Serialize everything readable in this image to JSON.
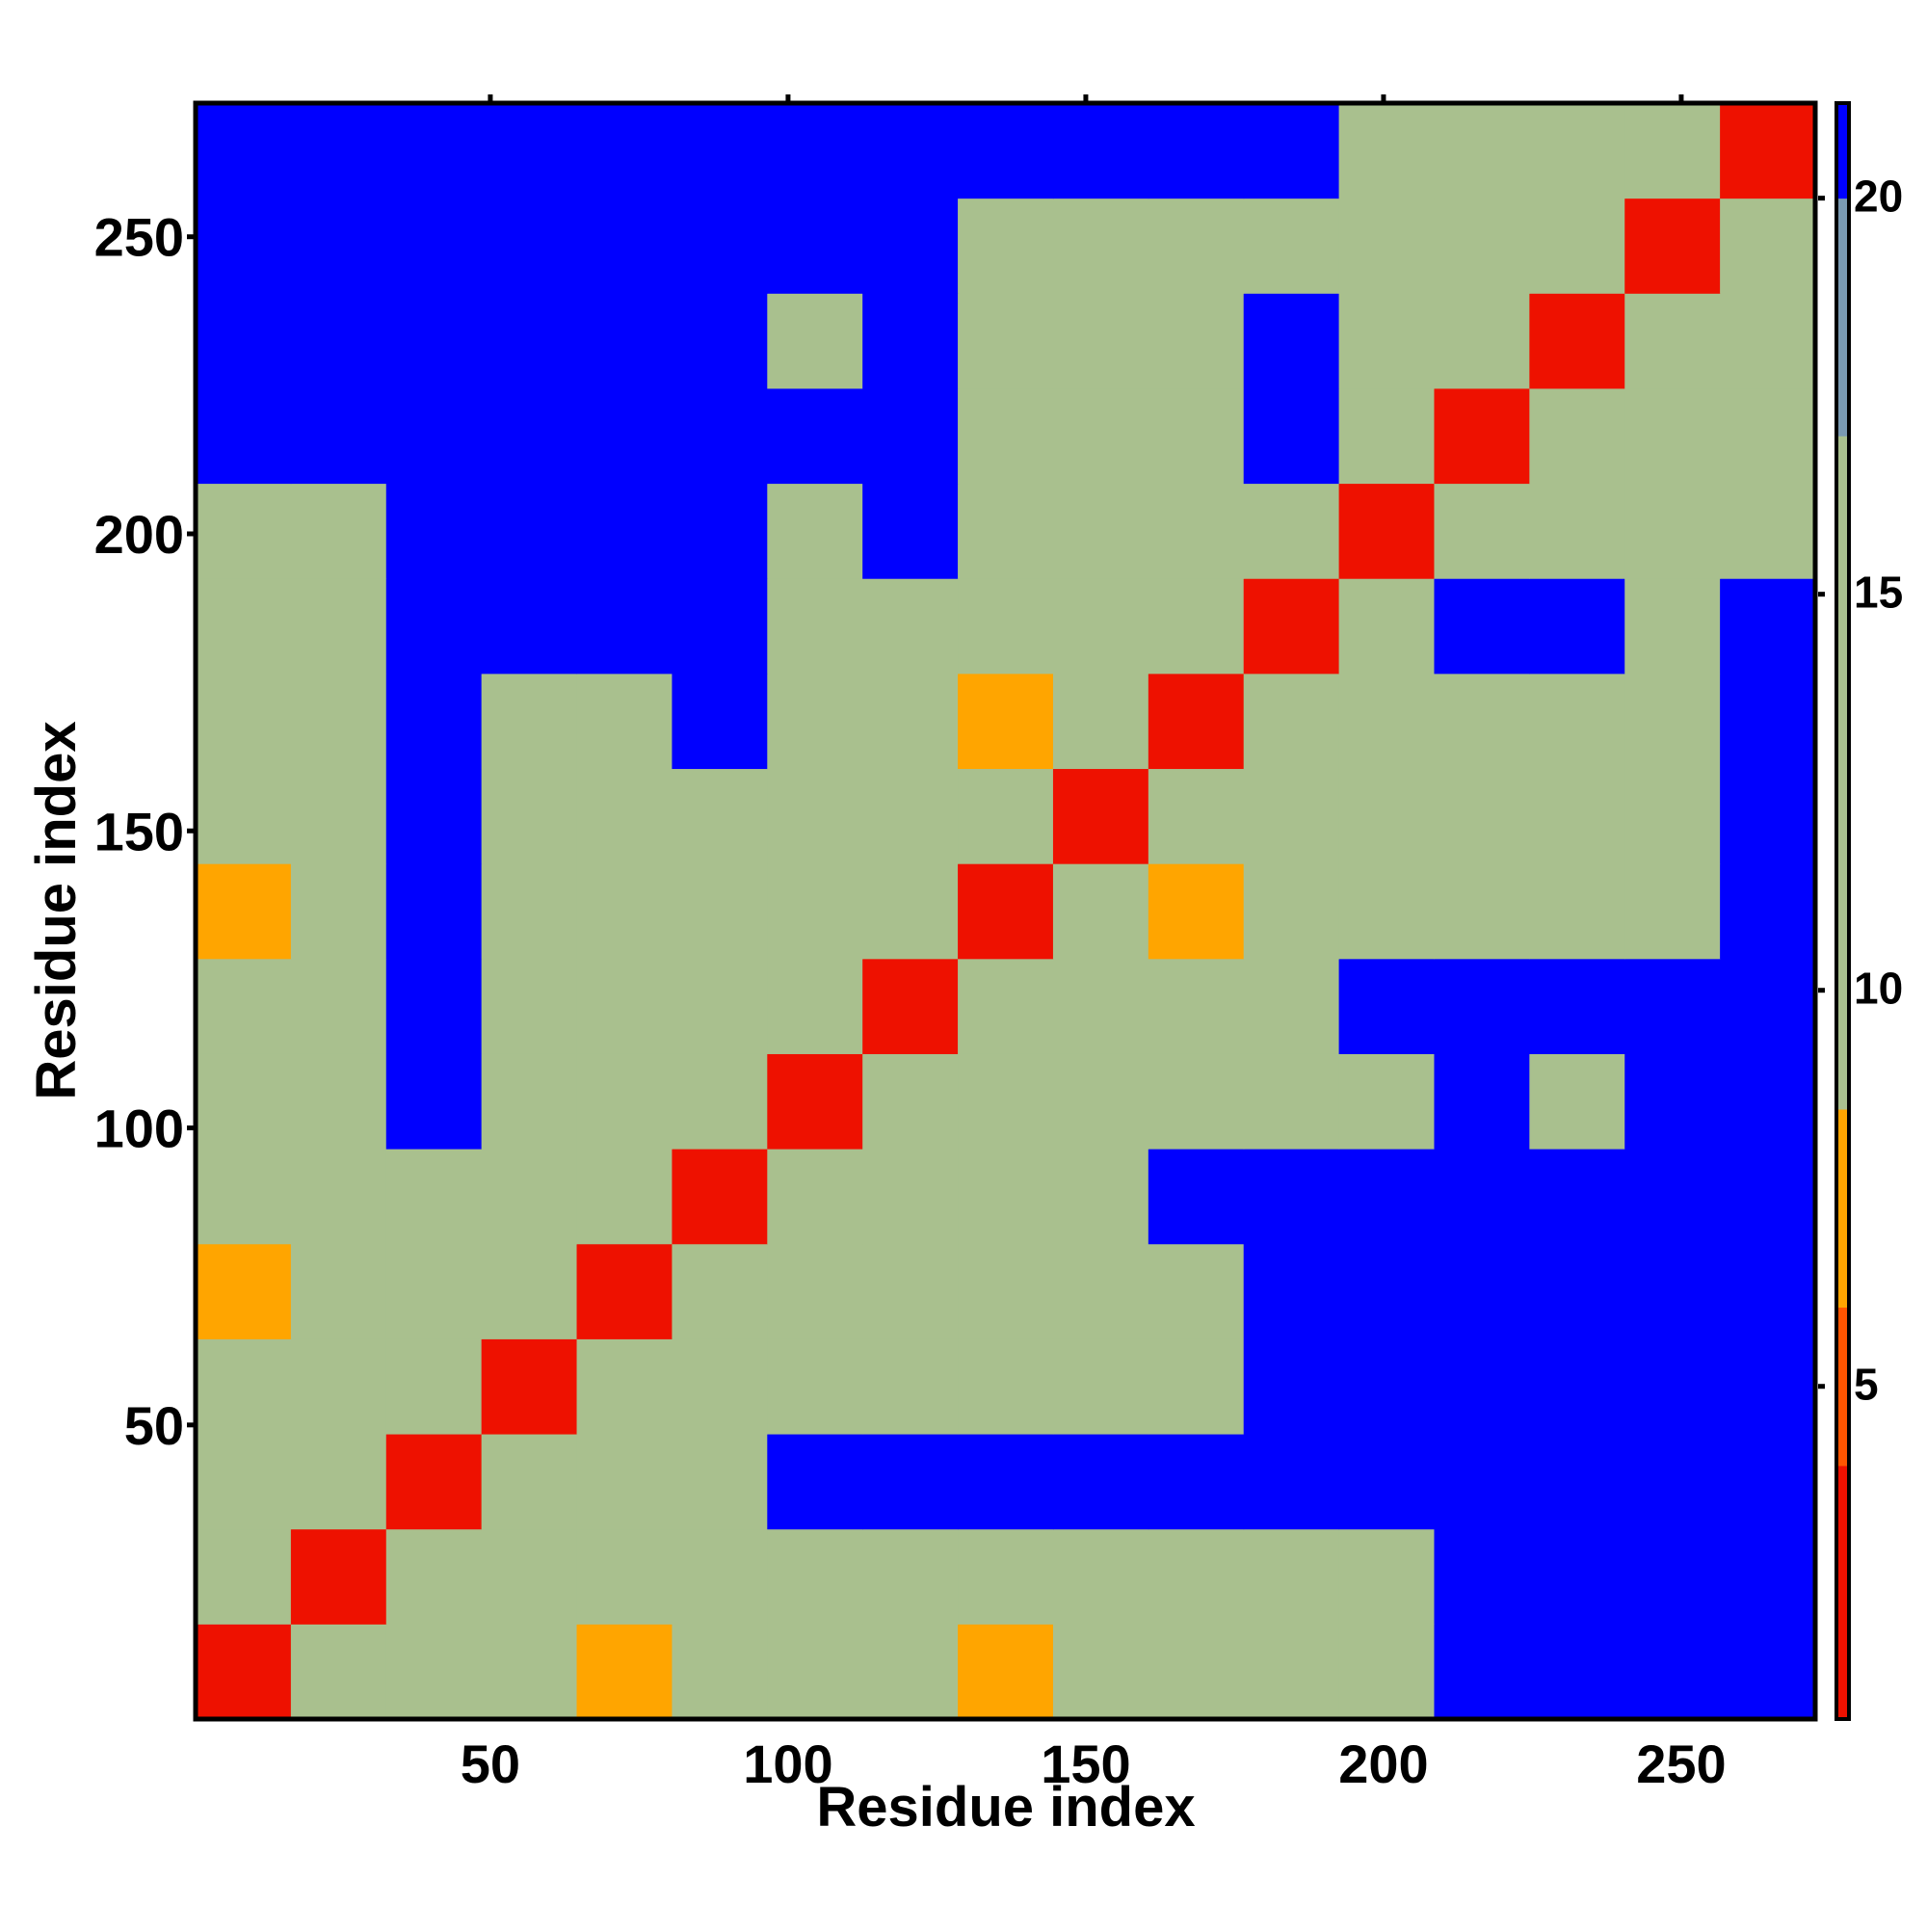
{
  "chart_data": {
    "type": "heatmap",
    "x_label": "Residue index",
    "y_label": "Residue index",
    "xlim": [
      0.5,
      272.5
    ],
    "ylim": [
      0.5,
      272.5
    ],
    "xticks": [
      50,
      100,
      150,
      200,
      250
    ],
    "yticks": [
      50,
      100,
      150,
      200,
      250
    ],
    "bins": [
      0.5,
      16.5,
      32.5,
      48.5,
      64.5,
      80.5,
      96.5,
      112.5,
      128.5,
      144.5,
      160.5,
      176.5,
      192.5,
      208.5,
      224.5,
      240.5,
      256.5,
      272.5
    ],
    "values": [
      [
        3,
        11,
        13,
        13,
        8,
        13,
        13,
        13,
        8,
        13,
        13,
        13,
        13,
        21,
        21,
        21,
        21
      ],
      [
        11,
        3,
        11,
        13,
        13,
        13,
        13,
        13,
        13,
        13,
        13,
        13,
        13,
        21,
        21,
        21,
        21
      ],
      [
        13,
        11,
        3,
        11,
        13,
        13,
        21,
        21,
        21,
        21,
        21,
        21,
        21,
        21,
        21,
        21,
        21
      ],
      [
        13,
        13,
        11,
        3,
        11,
        13,
        13,
        13,
        13,
        13,
        13,
        21,
        21,
        21,
        21,
        21,
        21
      ],
      [
        8,
        13,
        13,
        11,
        3,
        11,
        13,
        13,
        13,
        13,
        13,
        21,
        21,
        21,
        21,
        21,
        21
      ],
      [
        13,
        13,
        13,
        13,
        11,
        3,
        11,
        13,
        13,
        13,
        21,
        21,
        21,
        21,
        21,
        21,
        21
      ],
      [
        13,
        13,
        21,
        13,
        13,
        11,
        3,
        11,
        13,
        13,
        13,
        13,
        13,
        21,
        15,
        21,
        21
      ],
      [
        13,
        13,
        21,
        13,
        13,
        13,
        11,
        3,
        11,
        13,
        13,
        15,
        21,
        21,
        21,
        21,
        21
      ],
      [
        8,
        13,
        21,
        13,
        13,
        13,
        13,
        11,
        3,
        11,
        8,
        13,
        13,
        15,
        15,
        15,
        21
      ],
      [
        13,
        13,
        21,
        13,
        13,
        13,
        13,
        13,
        11,
        3,
        11,
        13,
        13,
        15,
        15,
        15,
        21
      ],
      [
        13,
        13,
        21,
        13,
        13,
        21,
        13,
        13,
        8,
        11,
        3,
        11,
        13,
        13,
        13,
        13,
        21
      ],
      [
        13,
        13,
        21,
        21,
        21,
        21,
        13,
        15,
        13,
        13,
        11,
        3,
        11,
        21,
        21,
        13,
        21
      ],
      [
        13,
        13,
        21,
        21,
        21,
        21,
        13,
        21,
        13,
        13,
        13,
        11,
        3,
        11,
        13,
        13,
        15
      ],
      [
        21,
        21,
        21,
        21,
        21,
        21,
        21,
        21,
        15,
        15,
        13,
        21,
        11,
        3,
        11,
        13,
        15
      ],
      [
        21,
        21,
        21,
        21,
        21,
        21,
        15,
        21,
        15,
        15,
        13,
        21,
        13,
        11,
        3,
        11,
        13
      ],
      [
        21,
        21,
        21,
        21,
        21,
        21,
        21,
        21,
        15,
        15,
        13,
        13,
        13,
        13,
        11,
        3,
        11
      ],
      [
        21,
        21,
        21,
        21,
        21,
        21,
        21,
        21,
        21,
        21,
        21,
        21,
        15,
        15,
        13,
        11,
        3
      ]
    ],
    "clim": [
      0.8,
      21.2
    ],
    "cticks": [
      5,
      10,
      15,
      20
    ],
    "colorscale": [
      {
        "max": 4,
        "color": "#ee1100"
      },
      {
        "max": 6,
        "color": "#ff5500"
      },
      {
        "max": 8.5,
        "color": "#ffa500"
      },
      {
        "max": 17,
        "color": "#a9c08e"
      },
      {
        "max": 20,
        "color": "#7a9ab2"
      },
      {
        "max": 21.2,
        "color": "#0000ff"
      }
    ]
  }
}
